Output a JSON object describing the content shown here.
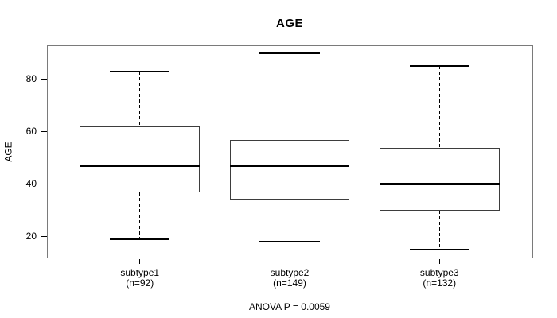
{
  "figure": {
    "title": "AGE",
    "y_axis_label": "AGE",
    "footer": "ANOVA P = 0.0059"
  },
  "chart_data": {
    "type": "box",
    "title": "AGE",
    "xlabel": "",
    "ylabel": "AGE",
    "ylim": [
      12,
      93
    ],
    "yticks": [
      20,
      40,
      60,
      80
    ],
    "grid": false,
    "legend": null,
    "annotation": "ANOVA P = 0.0059",
    "x_positions": [
      1,
      2,
      3
    ],
    "xlim": [
      0.38,
      3.62
    ],
    "box_width": 0.8,
    "cap_width": 0.4,
    "groups": [
      {
        "label": "subtype1",
        "n_label": "(n=92)",
        "n": 92,
        "whisker_low": 19,
        "q1": 37,
        "median": 47,
        "q3": 62,
        "whisker_high": 83
      },
      {
        "label": "subtype2",
        "n_label": "(n=149)",
        "n": 149,
        "whisker_low": 18,
        "q1": 34,
        "median": 47,
        "q3": 57,
        "whisker_high": 90
      },
      {
        "label": "subtype3",
        "n_label": "(n=132)",
        "n": 132,
        "whisker_low": 15,
        "q1": 30,
        "median": 40,
        "q3": 54,
        "whisker_high": 85
      }
    ],
    "colors": {
      "background": "#ffffff",
      "frame": "#7a7a7a",
      "box_border": "#3d3d3d",
      "median": "#000000",
      "whisker": "#000000",
      "text": "#000000"
    }
  }
}
